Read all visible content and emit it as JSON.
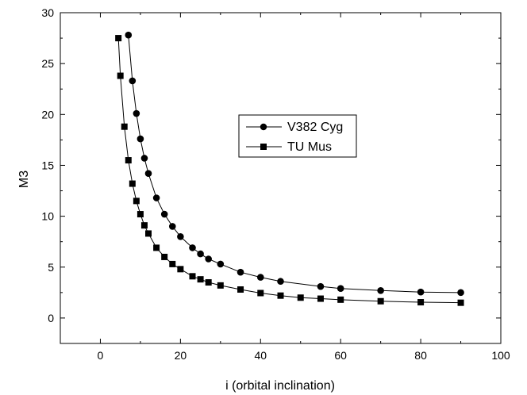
{
  "chart_data": {
    "type": "scatter",
    "xlabel": "i (orbital inclination)",
    "ylabel": "M3",
    "xlim": [
      -10,
      100
    ],
    "ylim": [
      -2.5,
      30
    ],
    "x_ticks": [
      0,
      20,
      40,
      60,
      80,
      100
    ],
    "y_ticks": [
      0,
      5,
      10,
      15,
      20,
      25,
      30
    ],
    "legend_position": "center",
    "series": [
      {
        "name": "V382 Cyg",
        "marker": "circle",
        "color": "#000000",
        "x": [
          7,
          8,
          9,
          10,
          11,
          12,
          14,
          16,
          18,
          20,
          23,
          25,
          27,
          30,
          35,
          40,
          45,
          55,
          60,
          70,
          80,
          90
        ],
        "y": [
          27.8,
          23.3,
          20.1,
          17.6,
          15.7,
          14.2,
          11.8,
          10.2,
          9.0,
          8.0,
          6.9,
          6.3,
          5.8,
          5.3,
          4.5,
          4.0,
          3.6,
          3.1,
          2.9,
          2.7,
          2.55,
          2.5
        ]
      },
      {
        "name": "TU Mus",
        "marker": "square",
        "color": "#000000",
        "x": [
          4.5,
          5,
          6,
          7,
          8,
          9,
          10,
          11,
          12,
          14,
          16,
          18,
          20,
          23,
          25,
          27,
          30,
          35,
          40,
          45,
          50,
          55,
          60,
          70,
          80,
          90
        ],
        "y": [
          27.5,
          23.8,
          18.8,
          15.5,
          13.2,
          11.5,
          10.2,
          9.1,
          8.3,
          6.9,
          6.0,
          5.3,
          4.8,
          4.1,
          3.8,
          3.5,
          3.2,
          2.8,
          2.45,
          2.2,
          2.0,
          1.9,
          1.8,
          1.65,
          1.55,
          1.5
        ]
      }
    ]
  }
}
